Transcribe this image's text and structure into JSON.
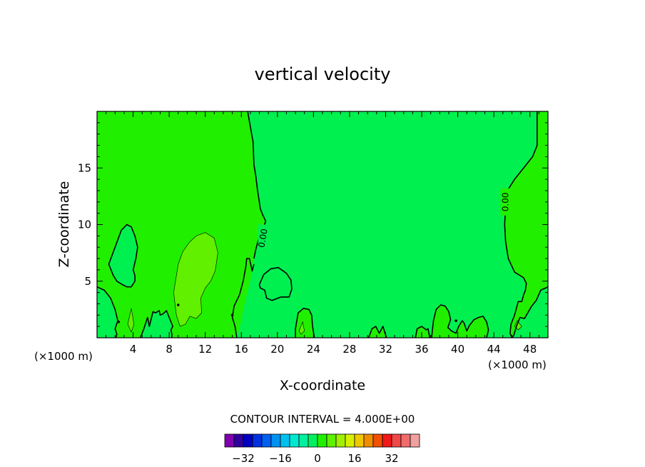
{
  "chart_data": {
    "type": "contour",
    "title": "vertical velocity",
    "xlabel": "X-coordinate",
    "ylabel": "Z-coordinate",
    "x_unit": "(×1000 m)",
    "y_unit": "(×1000 m)",
    "xlim": [
      0,
      50
    ],
    "ylim": [
      0,
      20
    ],
    "x_ticks": [
      4,
      8,
      12,
      16,
      20,
      24,
      28,
      32,
      36,
      40,
      44,
      48
    ],
    "y_ticks": [
      5,
      10,
      15
    ],
    "contour_interval_text": "CONTOUR INTERVAL = 4.000E+00",
    "contour_labels": [
      {
        "text": "0.00",
        "x": 18.4,
        "z": 8.8
      },
      {
        "text": "0.00",
        "x": 45.3,
        "z": 12.0
      }
    ],
    "zero_contour": [
      {
        "x": [
          16.7,
          17.3,
          17.4,
          17.6,
          17.8,
          18.0,
          18.1,
          18.4,
          18.7,
          18.4,
          17.9,
          17.6,
          17.4
        ],
        "z": [
          20,
          17.3,
          15.3,
          14.3,
          13.0,
          12.0,
          11.4,
          10.8,
          10.3,
          9.6,
          8.7,
          7.8,
          7.0
        ]
      },
      {
        "x": [
          48.8,
          48.8,
          48.3,
          47.3,
          46.3,
          45.5,
          45.3,
          45.2,
          45.3,
          45.6,
          46.3,
          47.3,
          47.6,
          47.5,
          47.3,
          47.1,
          46.7,
          46.3,
          45.9,
          45.8,
          46.0,
          46.2,
          46.5,
          46.9,
          47.4,
          47.9,
          48.2,
          48.7,
          49.2,
          50.0
        ],
        "z": [
          20,
          17.0,
          16.0,
          15.0,
          14.0,
          13.0,
          11.5,
          10.0,
          8.5,
          7.0,
          5.8,
          5.3,
          4.8,
          4.2,
          3.8,
          3.2,
          3.2,
          2.0,
          1.2,
          0.4,
          0,
          0.2,
          1.0,
          1.8,
          1.7,
          2.4,
          2.8,
          3.3,
          4.2,
          4.5
        ]
      },
      {
        "x": [
          1.3,
          2.0,
          2.7,
          3.3,
          3.8,
          4.2,
          4.5,
          4.3,
          4.0,
          4.2,
          4.2,
          3.8,
          3.3,
          2.8,
          2.2,
          1.8,
          1.3
        ],
        "z": [
          6.5,
          8.0,
          9.5,
          10.0,
          9.8,
          9.0,
          8.0,
          7.0,
          6.0,
          5.5,
          5.0,
          4.5,
          4.5,
          4.7,
          5.0,
          5.5,
          6.5
        ]
      },
      {
        "x": [
          18.0,
          18.5,
          19.3,
          20.1,
          21.0,
          21.5,
          21.6,
          21.3,
          20.4,
          19.4,
          18.8,
          18.6,
          18.1,
          18.0
        ],
        "z": [
          4.7,
          5.6,
          6.1,
          6.2,
          5.7,
          5.1,
          4.3,
          3.6,
          3.6,
          3.3,
          3.5,
          4.2,
          4.4,
          4.7
        ]
      },
      {
        "x": [
          0,
          0.8,
          1.5,
          2.0,
          2.3,
          2.0,
          2.2,
          2.1
        ],
        "z": [
          4.5,
          4.2,
          3.5,
          2.5,
          1.5,
          0.8,
          0.3,
          0
        ]
      },
      {
        "x": [
          4.8,
          5.2,
          5.6,
          5.8,
          6.2,
          6.5,
          6.9,
          7.0,
          7.3,
          7.7,
          8.0,
          8.4,
          8.2,
          8.3,
          8.3
        ],
        "z": [
          0,
          0.8,
          1.8,
          1.0,
          2.3,
          2.2,
          2.4,
          2.0,
          2.1,
          2.4,
          1.8,
          1.0,
          0.7,
          0.3,
          0
        ]
      },
      {
        "x": [
          15.5,
          15.3,
          15.0,
          15.2,
          15.8,
          16.2,
          16.5,
          16.6,
          16.9,
          17.2,
          17.4
        ],
        "z": [
          0,
          1.0,
          1.8,
          2.8,
          3.8,
          5.0,
          6.3,
          7.0,
          7.0,
          5.9,
          6.5
        ]
      },
      {
        "x": [
          22.0,
          22.0,
          22.3,
          22.9,
          23.5,
          23.8,
          23.9,
          24.1
        ],
        "z": [
          0,
          0.8,
          2.2,
          2.6,
          2.5,
          2.0,
          1.0,
          0
        ]
      },
      {
        "x": [
          30.1,
          30.5,
          30.9,
          31.3,
          31.7,
          32.1
        ],
        "z": [
          0,
          0.8,
          1.0,
          0.4,
          1.0,
          0
        ]
      },
      {
        "x": [
          35.3,
          35.5,
          36.0,
          36.5,
          36.7,
          36.9
        ],
        "z": [
          0,
          0.8,
          1.0,
          0.7,
          0.8,
          0
        ]
      },
      {
        "x": [
          37.1,
          37.3,
          37.6,
          38.1,
          38.6,
          39.0,
          39.2,
          38.9,
          39.3,
          39.8,
          40.1,
          40.5,
          40.7,
          41.0,
          41.3,
          41.8,
          42.3,
          42.8,
          43.2,
          43.4,
          43.2
        ],
        "z": [
          0,
          1.5,
          2.5,
          2.9,
          2.8,
          2.3,
          1.6,
          0.9,
          0.6,
          0.4,
          1.0,
          1.5,
          1.3,
          0.6,
          1.1,
          1.6,
          1.8,
          1.9,
          1.4,
          0.7,
          0
        ]
      }
    ],
    "positive_regions_x_range_km": [
      [
        0,
        17.4
      ],
      [
        45.2,
        50
      ]
    ],
    "legend": {
      "levels": [
        -36,
        -32,
        -28,
        -24,
        -20,
        -16,
        -12,
        -8,
        -4,
        0,
        4,
        8,
        12,
        16,
        20,
        24,
        28,
        32,
        36
      ],
      "tick_labels": [
        "−32",
        "−16",
        "0",
        "16",
        "32"
      ],
      "tick_values": [
        -32,
        -16,
        0,
        16,
        32
      ],
      "colors": [
        "#8000b0",
        "#3000a0",
        "#0000c0",
        "#0030e0",
        "#0060f0",
        "#0090f0",
        "#00c0f0",
        "#00e8d0",
        "#00f0a0",
        "#00f060",
        "#20f000",
        "#60f000",
        "#a0f000",
        "#d8f000",
        "#f0c800",
        "#f08c00",
        "#f05000",
        "#f01818",
        "#f04848",
        "#f06c6c",
        "#f0a0a0"
      ]
    },
    "fill_colors": {
      "background": "#00f050",
      "level_0_to_4": "#20f000",
      "level_4_to_8": "#60f000"
    }
  }
}
